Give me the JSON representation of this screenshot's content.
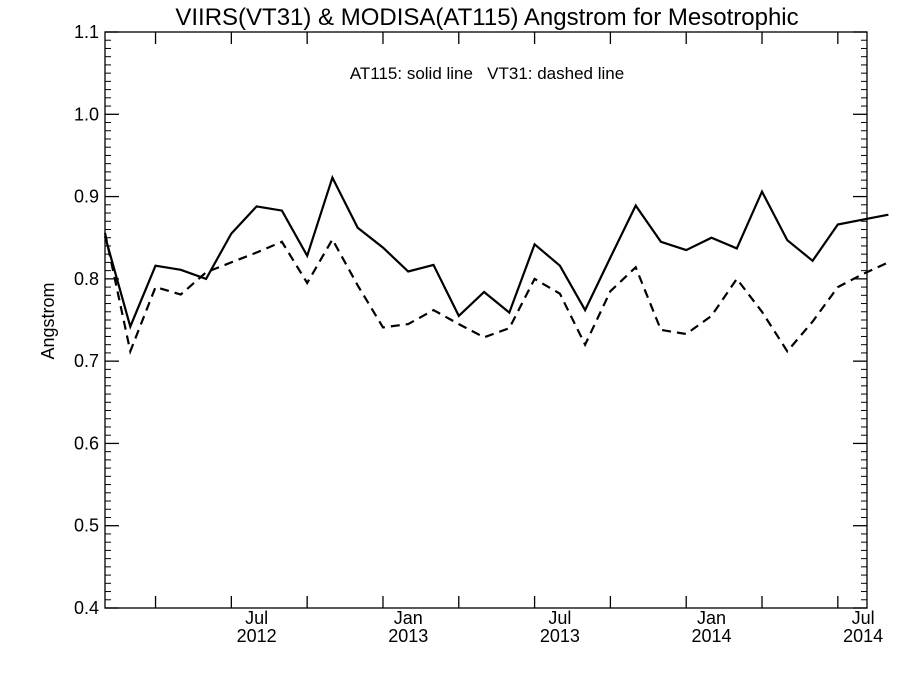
{
  "chart_data": {
    "type": "line",
    "title": "VIIRS(VT31) & MODISA(AT115)  Angstrom for Mesotrophic",
    "ylabel": "Angstrom",
    "xlabel": "",
    "annotation": "AT115: solid line   VT31: dashed line",
    "ylim": [
      0.4,
      1.1
    ],
    "y_ticks": [
      "0.4",
      "0.5",
      "0.6",
      "0.7",
      "0.8",
      "0.9",
      "1.0",
      "1.1"
    ],
    "x_ticks": [
      {
        "month": "Jul",
        "year": "2012"
      },
      {
        "month": "Jan",
        "year": "2013"
      },
      {
        "month": "Jul",
        "year": "2013"
      },
      {
        "month": "Jan",
        "year": "2014"
      },
      {
        "month": "Jul",
        "year": "2014"
      }
    ],
    "x": [
      "2012-01",
      "2012-02",
      "2012-03",
      "2012-04",
      "2012-05",
      "2012-06",
      "2012-07",
      "2012-08",
      "2012-09",
      "2012-10",
      "2012-11",
      "2012-12",
      "2013-01",
      "2013-02",
      "2013-03",
      "2013-04",
      "2013-05",
      "2013-06",
      "2013-07",
      "2013-08",
      "2013-09",
      "2013-10",
      "2013-11",
      "2013-12",
      "2014-01",
      "2014-02",
      "2014-03",
      "2014-04",
      "2014-05",
      "2014-06",
      "2014-07",
      "2014-08"
    ],
    "series": [
      {
        "name": "AT115",
        "style": "solid",
        "color": "#000000",
        "values": [
          0.852,
          0.742,
          0.816,
          0.811,
          0.8,
          0.855,
          0.888,
          0.883,
          0.828,
          0.923,
          0.862,
          0.838,
          0.809,
          0.817,
          0.755,
          0.784,
          0.759,
          0.842,
          0.816,
          0.762,
          0.826,
          0.889,
          0.845,
          0.835,
          0.85,
          0.837,
          0.906,
          0.847,
          0.822,
          0.866,
          0.872,
          0.878
        ]
      },
      {
        "name": "VT31",
        "style": "dashed",
        "color": "#000000",
        "values": [
          0.856,
          0.712,
          0.79,
          0.781,
          0.808,
          0.82,
          0.832,
          0.845,
          0.795,
          0.848,
          0.792,
          0.741,
          0.745,
          0.762,
          0.745,
          0.729,
          0.74,
          0.8,
          0.782,
          0.72,
          0.785,
          0.814,
          0.738,
          0.733,
          0.755,
          0.8,
          0.76,
          0.712,
          0.748,
          0.79,
          0.806,
          0.82
        ]
      }
    ]
  }
}
